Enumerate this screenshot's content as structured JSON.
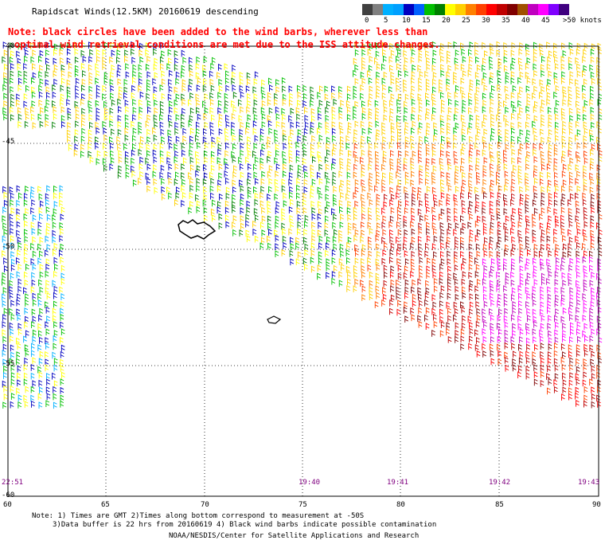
{
  "header": {
    "title": "Rapidscat Winds(12.5KM) 20160619 descending",
    "note_line1": "Note: black circles have been added to the wind barbs, wherever less than",
    "note_line2": "optimal wind retrieval conditions are met due to the ISS attitude changes."
  },
  "color_scale": {
    "colors": [
      "#404040",
      "#808080",
      "#00b0ff",
      "#00a0ff",
      "#0000c0",
      "#0060ff",
      "#00c000",
      "#008000",
      "#ffff00",
      "#ffd000",
      "#ff8000",
      "#ff4000",
      "#ff0000",
      "#c00000",
      "#800000",
      "#a05000",
      "#c000c0",
      "#ff00ff",
      "#8000ff",
      "#400080"
    ],
    "labels": [
      "0",
      "5",
      "10",
      "15",
      "20",
      "25",
      "30",
      "35",
      "40",
      "45",
      ">50 knots"
    ]
  },
  "axes": {
    "x_ticks": [
      "60",
      "65",
      "70",
      "75",
      "80",
      "85",
      "90"
    ],
    "y_ticks": [
      "-40",
      "-45",
      "-50",
      "-55",
      "-60"
    ]
  },
  "times": [
    "22:51",
    "19:40",
    "19:41",
    "19:42",
    "19:43"
  ],
  "footer": {
    "line1": "Note: 1) Times are GMT 2)Times along bottom correspond to measurement at -50S",
    "line2": "3)Data buffer is 22 hrs from 20160619 4) Black wind barbs indicate possible contamination",
    "line3": "NOAA/NESDIS/Center for Satellite Applications and Research"
  }
}
